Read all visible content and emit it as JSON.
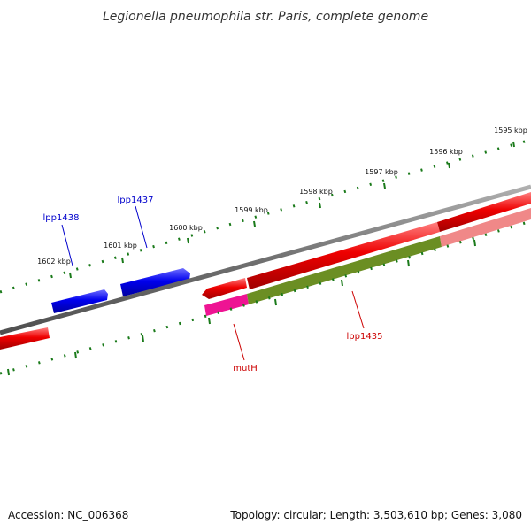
{
  "title": "Legionella pneumophila str. Paris, complete genome",
  "footer": {
    "accession": "Accession: NC_006368",
    "summary": "Topology: circular; Length: 3,503,610 bp; Genes: 3,080"
  },
  "scale_labels": [
    "1602 kbp",
    "1601 kbp",
    "1600 kbp",
    "1599 kbp",
    "1598 kbp",
    "1597 kbp",
    "1596 kbp",
    "1595 kbp"
  ],
  "gene_labels": {
    "lpp1438": "lpp1438",
    "lpp1437": "lpp1437",
    "muth": "mutH",
    "lpp1435": "lpp1435"
  },
  "colors": {
    "backbone": "#808080",
    "tick": "#1a7a1a",
    "forward_gene": "#0000ee",
    "reverse_gene": "#ee0000",
    "reverse_gene_light": "#f08888",
    "cds_olive": "#6b8e23",
    "cds_magenta": "#ee1493",
    "label_blue": "#0000cc",
    "label_red": "#cc0000"
  }
}
